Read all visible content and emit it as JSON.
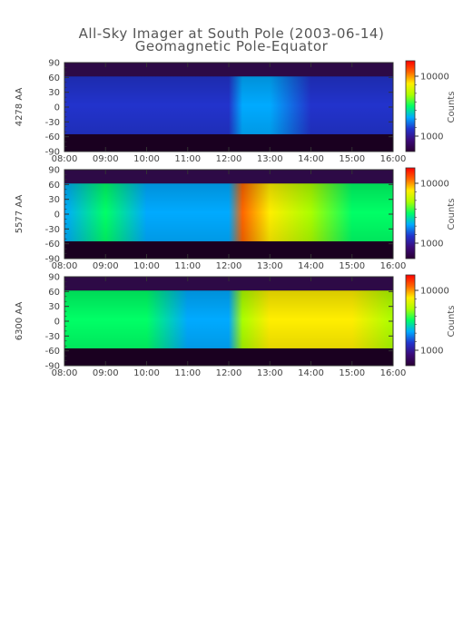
{
  "title": "All-Sky Imager at South Pole (2003-06-14)",
  "subtitle": "Geomagnetic Pole-Equator",
  "colormap": [
    "#2a0033",
    "#3b0a7a",
    "#2233cc",
    "#00aaff",
    "#00ff66",
    "#aaff00",
    "#ffee00",
    "#ff6600",
    "#ff0000"
  ],
  "chart_data": [
    {
      "type": "heatmap",
      "ylabel": "4278 AA",
      "x_ticks": [
        "08:00",
        "09:00",
        "10:00",
        "11:00",
        "12:00",
        "13:00",
        "14:00",
        "15:00",
        "16:00"
      ],
      "y_ticks": [
        "90",
        "60",
        "30",
        "0",
        "-30",
        "-60",
        "-90"
      ],
      "xlim": [
        "08:00",
        "16:00"
      ],
      "ylim": [
        -90,
        90
      ],
      "colorbar": {
        "label": "Counts",
        "ticks": [
          "10000",
          "1000"
        ],
        "scale": "log"
      },
      "valid_lat_range": [
        -55,
        62
      ],
      "activity": [
        {
          "time": "08:00",
          "level": 0.28
        },
        {
          "time": "09:00",
          "level": 0.3
        },
        {
          "time": "10:00",
          "level": 0.32
        },
        {
          "time": "11:00",
          "level": 0.3
        },
        {
          "time": "12:00",
          "level": 0.27
        },
        {
          "time": "12:20",
          "level": 0.45
        },
        {
          "time": "13:00",
          "level": 0.4
        },
        {
          "time": "14:00",
          "level": 0.33
        },
        {
          "time": "15:00",
          "level": 0.29
        },
        {
          "time": "16:00",
          "level": 0.3
        }
      ]
    },
    {
      "type": "heatmap",
      "ylabel": "5577 AA",
      "x_ticks": [
        "08:00",
        "09:00",
        "10:00",
        "11:00",
        "12:00",
        "13:00",
        "14:00",
        "15:00",
        "16:00"
      ],
      "y_ticks": [
        "90",
        "60",
        "30",
        "0",
        "-30",
        "-60",
        "-90"
      ],
      "xlim": [
        "08:00",
        "16:00"
      ],
      "ylim": [
        -90,
        90
      ],
      "colorbar": {
        "label": "Counts",
        "ticks": [
          "10000",
          "1000"
        ],
        "scale": "log"
      },
      "valid_lat_range": [
        -55,
        62
      ],
      "activity": [
        {
          "time": "08:00",
          "level": 0.48
        },
        {
          "time": "09:00",
          "level": 0.5
        },
        {
          "time": "10:00",
          "level": 0.45
        },
        {
          "time": "11:00",
          "level": 0.42
        },
        {
          "time": "12:00",
          "level": 0.4
        },
        {
          "time": "12:20",
          "level": 0.92
        },
        {
          "time": "13:00",
          "level": 0.8
        },
        {
          "time": "14:00",
          "level": 0.7
        },
        {
          "time": "15:00",
          "level": 0.62
        },
        {
          "time": "16:00",
          "level": 0.6
        }
      ]
    },
    {
      "type": "heatmap",
      "ylabel": "6300 AA",
      "x_ticks": [
        "08:00",
        "09:00",
        "10:00",
        "11:00",
        "12:00",
        "13:00",
        "14:00",
        "15:00",
        "16:00"
      ],
      "y_ticks": [
        "90",
        "60",
        "30",
        "0",
        "-30",
        "-60",
        "-90"
      ],
      "xlim": [
        "08:00",
        "16:00"
      ],
      "ylim": [
        -90,
        90
      ],
      "colorbar": {
        "label": "Counts",
        "ticks": [
          "10000",
          "1000"
        ],
        "scale": "log"
      },
      "valid_lat_range": [
        -55,
        62
      ],
      "activity": [
        {
          "time": "08:00",
          "level": 0.52
        },
        {
          "time": "09:00",
          "level": 0.55
        },
        {
          "time": "10:00",
          "level": 0.5
        },
        {
          "time": "11:00",
          "level": 0.46
        },
        {
          "time": "12:00",
          "level": 0.42
        },
        {
          "time": "12:20",
          "level": 0.7
        },
        {
          "time": "13:00",
          "level": 0.78
        },
        {
          "time": "14:00",
          "level": 0.82
        },
        {
          "time": "15:00",
          "level": 0.78
        },
        {
          "time": "16:00",
          "level": 0.7
        }
      ]
    }
  ]
}
